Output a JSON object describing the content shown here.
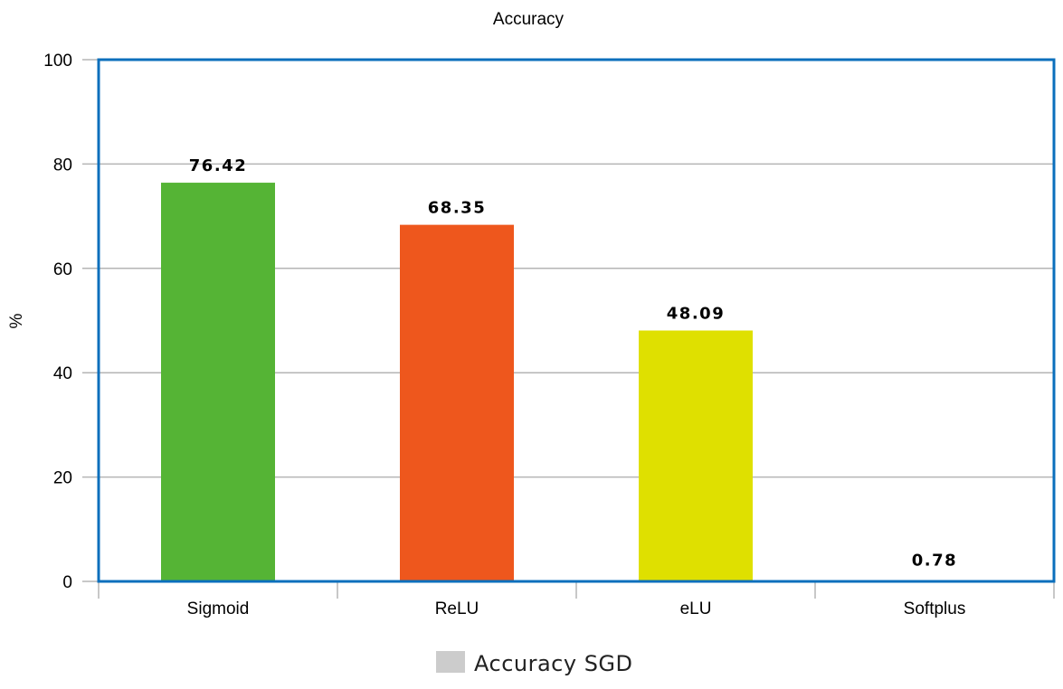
{
  "chart_data": {
    "type": "bar",
    "title": "Accuracy",
    "xlabel": "",
    "ylabel": "%",
    "ylim": [
      0,
      100
    ],
    "yticks": [
      0,
      20,
      40,
      60,
      80,
      100
    ],
    "categories": [
      "Sigmoid",
      "ReLU",
      "eLU",
      "Softplus"
    ],
    "series": [
      {
        "name": "Accuracy SGD",
        "values": [
          76.42,
          68.35,
          48.09,
          0.78
        ],
        "data_labels": [
          "76.42",
          "68.35",
          "48.09",
          "0.78"
        ],
        "colors": [
          "#55b435",
          "#ee571d",
          "#dfe000",
          "#ffffff"
        ]
      }
    ],
    "grid": true,
    "legend": {
      "placement": "bottom-center",
      "entries": [
        {
          "label": "Accuracy SGD",
          "color": "#cccccc"
        }
      ]
    },
    "frame_color": "#0b6fbc",
    "grid_color": "#b5b5b5"
  }
}
